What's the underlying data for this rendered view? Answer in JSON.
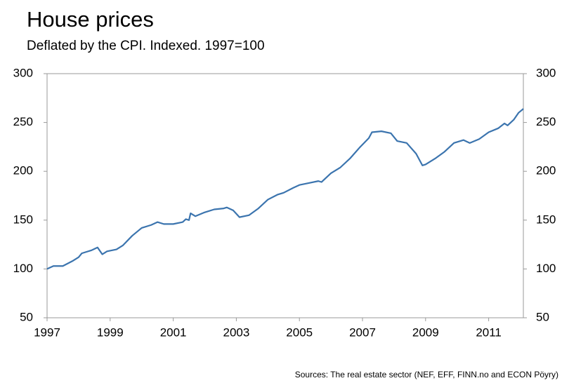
{
  "chart_data": {
    "type": "line",
    "title": "House prices",
    "subtitle": "Deflated by the CPI. Indexed. 1997=100",
    "source": "Sources: The real estate sector (NEF, EFF, FINN.no and ECON Pöyry)",
    "series": [
      {
        "name": "House prices",
        "color": "#3b74ae",
        "x": [
          1997.0,
          1997.2,
          1997.5,
          1997.8,
          1998.0,
          1998.1,
          1998.4,
          1998.6,
          1998.75,
          1998.9,
          1999.2,
          1999.4,
          1999.7,
          2000.0,
          2000.3,
          2000.5,
          2000.7,
          2001.0,
          2001.3,
          2001.4,
          2001.5,
          2001.55,
          2001.7,
          2002.0,
          2002.3,
          2002.6,
          2002.7,
          2002.9,
          2003.1,
          2003.4,
          2003.7,
          2004.0,
          2004.3,
          2004.5,
          2004.8,
          2005.0,
          2005.3,
          2005.6,
          2005.7,
          2006.0,
          2006.3,
          2006.6,
          2006.9,
          2007.2,
          2007.3,
          2007.6,
          2007.9,
          2008.1,
          2008.4,
          2008.7,
          2008.9,
          2009.0,
          2009.3,
          2009.6,
          2009.9,
          2010.2,
          2010.4,
          2010.7,
          2011.0,
          2011.3,
          2011.5,
          2011.6,
          2011.8,
          2011.95,
          2012.1
        ],
        "values": [
          100,
          103,
          103,
          108,
          112,
          116,
          119,
          122,
          115,
          118,
          120,
          124,
          134,
          142,
          145,
          148,
          146,
          146,
          148,
          151,
          150,
          157,
          154,
          158,
          161,
          162,
          163,
          160,
          153,
          155,
          162,
          171,
          176,
          178,
          183,
          186,
          188,
          190,
          189,
          198,
          204,
          213,
          224,
          234,
          240,
          241,
          239,
          231,
          229,
          218,
          206,
          207,
          213,
          220,
          229,
          232,
          229,
          233,
          240,
          244,
          249,
          247,
          253,
          260,
          264
        ]
      }
    ],
    "xlim": [
      1997,
      2012.1
    ],
    "xticks": [
      1997,
      1999,
      2001,
      2003,
      2005,
      2007,
      2009,
      2011
    ],
    "ylim": [
      50,
      300
    ],
    "yticks": [
      50,
      100,
      150,
      200,
      250,
      300
    ]
  }
}
